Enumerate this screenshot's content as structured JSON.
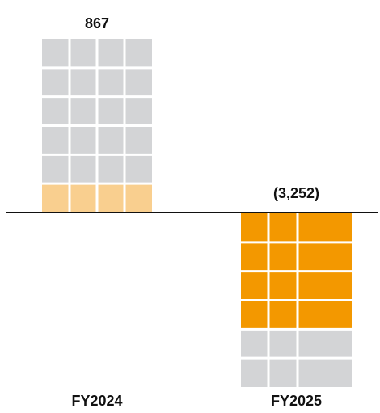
{
  "chart_data": {
    "type": "bar",
    "categories": [
      "FY2024",
      "FY2025"
    ],
    "values": [
      867,
      -3252
    ],
    "value_labels": [
      "867",
      "(3,252)"
    ],
    "colors": [
      "#f9cf8f",
      "#f39800"
    ]
  }
}
